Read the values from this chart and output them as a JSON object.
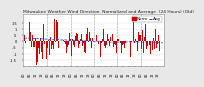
{
  "title": "Milwaukee Weather Wind Direction  Normalized and Average  (24 Hours) (Old)",
  "title_fontsize": 3.2,
  "background_color": "#e8e8e8",
  "plot_bg_color": "#ffffff",
  "bar_color": "#cc0000",
  "line_color": "#2244cc",
  "num_points": 144,
  "seed": 42,
  "ylim": [
    -2.0,
    2.2
  ],
  "legend_label_norm": "Norm",
  "legend_label_avg": "Avg",
  "legend_fontsize": 3.0,
  "tick_fontsize": 2.5,
  "grid_color": "#999999",
  "vgrid_positions": [
    24,
    48,
    72,
    96,
    120
  ],
  "yticks": [
    -1.5,
    -1.0,
    -0.5,
    0.0,
    0.5,
    1.0,
    1.5
  ],
  "ytick_labels": [
    "-1.5",
    "-1",
    "-.5",
    "0",
    ".5",
    "1",
    "1.5"
  ]
}
